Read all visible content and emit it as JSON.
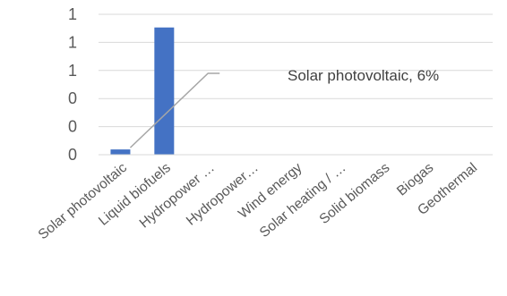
{
  "chart_data": {
    "type": "bar",
    "title": "",
    "xlabel": "",
    "ylabel": "",
    "categories": [
      "Solar photovoltaic",
      "Liquid biofuels",
      "Hydropower …",
      "Hydropower…",
      "Wind energy",
      "Solar heating / …",
      "Solid biomass",
      "Biogas",
      "Geothermal"
    ],
    "values": [
      0.06,
      1.45,
      0,
      0,
      0,
      0,
      0,
      0,
      0
    ],
    "y_tick_labels": [
      "0",
      "0",
      "0",
      "1",
      "1",
      "1"
    ],
    "ylim": [
      0,
      1.6
    ],
    "grid": true,
    "legend": "none",
    "annotation": "Solar photovoltaic, 6%",
    "colors": {
      "bar": "#4472c4",
      "grid": "#d9d9d9",
      "text": "#595959",
      "leader": "#a6a6a6"
    }
  }
}
